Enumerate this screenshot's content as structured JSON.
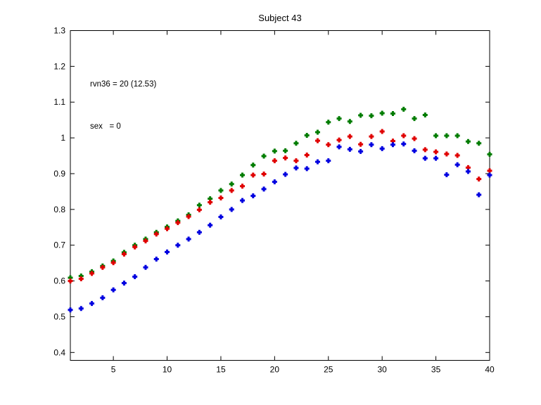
{
  "figure": {
    "title": "Subject 43",
    "annotation_line1": "rvn36 = 20 (12.53)",
    "annotation_line2": "sex   = 0"
  },
  "chart_data": {
    "type": "scatter",
    "title": "Subject 43",
    "xlabel": "",
    "ylabel": "",
    "grid": false,
    "marker": "plus",
    "xlim": [
      1,
      40
    ],
    "ylim": [
      0.378,
      1.3
    ],
    "xticks": [
      5,
      10,
      15,
      20,
      25,
      30,
      35,
      40
    ],
    "yticks": [
      0.4,
      0.5,
      0.6,
      0.7,
      0.8,
      0.9,
      1,
      1.1,
      1.2,
      1.3
    ],
    "x": [
      1,
      2,
      3,
      4,
      5,
      6,
      7,
      8,
      9,
      10,
      11,
      12,
      13,
      14,
      15,
      16,
      17,
      18,
      19,
      20,
      21,
      22,
      23,
      24,
      25,
      26,
      27,
      28,
      29,
      30,
      31,
      32,
      33,
      34,
      35,
      36,
      37,
      38,
      39,
      40
    ],
    "series": [
      {
        "name": "green",
        "color": "#007c00",
        "values": [
          0.609,
          0.614,
          0.626,
          0.642,
          0.656,
          0.68,
          0.7,
          0.717,
          0.736,
          0.751,
          0.768,
          0.785,
          0.812,
          0.83,
          0.853,
          0.871,
          0.896,
          0.924,
          0.949,
          0.963,
          0.964,
          0.985,
          1.007,
          1.016,
          1.044,
          1.054,
          1.046,
          1.063,
          1.062,
          1.069,
          1.068,
          1.08,
          1.054,
          1.064,
          1.006,
          1.006,
          1.006,
          0.99,
          0.985,
          0.954
        ]
      },
      {
        "name": "red",
        "color": "#e00000",
        "values": [
          0.6,
          0.606,
          0.621,
          0.638,
          0.651,
          0.675,
          0.695,
          0.712,
          0.731,
          0.746,
          0.763,
          0.78,
          0.799,
          0.82,
          0.832,
          0.853,
          0.865,
          0.896,
          0.899,
          0.936,
          0.944,
          0.936,
          0.952,
          0.992,
          0.981,
          0.994,
          1.004,
          0.982,
          1.004,
          1.018,
          0.991,
          1.006,
          0.998,
          0.967,
          0.961,
          0.955,
          0.951,
          0.917,
          0.885,
          0.908
        ]
      },
      {
        "name": "blue",
        "color": "#0000e0",
        "values": [
          0.519,
          0.523,
          0.537,
          0.553,
          0.575,
          0.594,
          0.612,
          0.638,
          0.661,
          0.681,
          0.7,
          0.717,
          0.736,
          0.756,
          0.779,
          0.8,
          0.825,
          0.838,
          0.857,
          0.877,
          0.898,
          0.916,
          0.914,
          0.933,
          0.936,
          0.975,
          0.968,
          0.962,
          0.981,
          0.97,
          0.981,
          0.983,
          0.964,
          0.943,
          0.943,
          0.897,
          0.925,
          0.906,
          0.841,
          0.896
        ]
      }
    ]
  }
}
